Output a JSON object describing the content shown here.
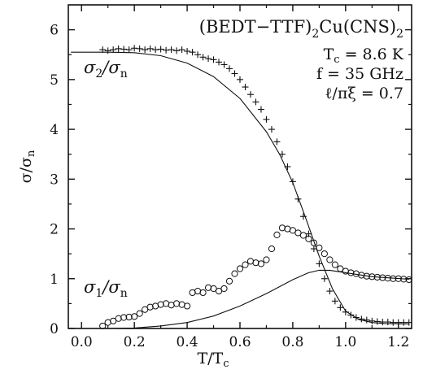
{
  "chart_data": {
    "type": "scatter",
    "title": "",
    "xlabel": "T/T",
    "xlabel_sub": "c",
    "ylabel": "σ/σ",
    "ylabel_sub": "n",
    "xlim": [
      -0.05,
      1.25
    ],
    "ylim": [
      0,
      6.5
    ],
    "x_ticks": [
      0.0,
      0.2,
      0.4,
      0.6,
      0.8,
      1.0,
      1.2
    ],
    "x_tick_labels": [
      "0.0",
      "0.2",
      "0.4",
      "0.6",
      "0.8",
      "1.0",
      "1.2"
    ],
    "y_ticks": [
      0,
      1,
      2,
      3,
      4,
      5,
      6
    ],
    "y_tick_labels": [
      "0",
      "1",
      "2",
      "3",
      "4",
      "5",
      "6"
    ],
    "grid": false,
    "legend": "none",
    "annotations": {
      "material": {
        "a": "(BEDT−TTF)",
        "b": "2",
        "c": "Cu(CNS)",
        "d": "2"
      },
      "tc": {
        "main": "T",
        "sub": "c",
        "rest": " = 8.6 K"
      },
      "freq": "f = 35 GHz",
      "ratio": "ℓ/πξ = 0.7",
      "sigma2": {
        "main": "σ",
        "sub1": "2",
        "mid": "/σ",
        "sub2": "n"
      },
      "sigma1": {
        "main": "σ",
        "sub1": "1",
        "mid": "/σ",
        "sub2": "n"
      }
    },
    "series": [
      {
        "marker": "plus",
        "points": [
          [
            0.08,
            5.6
          ],
          [
            0.1,
            5.58
          ],
          [
            0.12,
            5.6
          ],
          [
            0.14,
            5.62
          ],
          [
            0.16,
            5.61
          ],
          [
            0.18,
            5.6
          ],
          [
            0.2,
            5.63
          ],
          [
            0.22,
            5.62
          ],
          [
            0.24,
            5.6
          ],
          [
            0.26,
            5.62
          ],
          [
            0.28,
            5.6
          ],
          [
            0.3,
            5.61
          ],
          [
            0.32,
            5.59
          ],
          [
            0.34,
            5.6
          ],
          [
            0.36,
            5.58
          ],
          [
            0.38,
            5.6
          ],
          [
            0.4,
            5.57
          ],
          [
            0.42,
            5.55
          ],
          [
            0.44,
            5.5
          ],
          [
            0.46,
            5.45
          ],
          [
            0.48,
            5.42
          ],
          [
            0.5,
            5.4
          ],
          [
            0.52,
            5.35
          ],
          [
            0.54,
            5.3
          ],
          [
            0.56,
            5.22
          ],
          [
            0.58,
            5.12
          ],
          [
            0.6,
            5.0
          ],
          [
            0.62,
            4.85
          ],
          [
            0.64,
            4.7
          ],
          [
            0.66,
            4.55
          ],
          [
            0.68,
            4.4
          ],
          [
            0.7,
            4.2
          ],
          [
            0.72,
            4.0
          ],
          [
            0.74,
            3.75
          ],
          [
            0.76,
            3.5
          ],
          [
            0.78,
            3.25
          ],
          [
            0.8,
            2.95
          ],
          [
            0.82,
            2.6
          ],
          [
            0.84,
            2.25
          ],
          [
            0.86,
            1.9
          ],
          [
            0.88,
            1.6
          ],
          [
            0.9,
            1.3
          ],
          [
            0.92,
            1.0
          ],
          [
            0.94,
            0.75
          ],
          [
            0.96,
            0.55
          ],
          [
            0.98,
            0.42
          ],
          [
            1.0,
            0.33
          ],
          [
            1.02,
            0.27
          ],
          [
            1.04,
            0.22
          ],
          [
            1.06,
            0.19
          ],
          [
            1.08,
            0.17
          ],
          [
            1.1,
            0.15
          ],
          [
            1.12,
            0.14
          ],
          [
            1.14,
            0.13
          ],
          [
            1.16,
            0.13
          ],
          [
            1.18,
            0.12
          ],
          [
            1.2,
            0.12
          ],
          [
            1.22,
            0.12
          ],
          [
            1.24,
            0.12
          ]
        ]
      },
      {
        "marker": "circle",
        "points": [
          [
            0.08,
            0.05
          ],
          [
            0.1,
            0.12
          ],
          [
            0.12,
            0.15
          ],
          [
            0.14,
            0.2
          ],
          [
            0.16,
            0.22
          ],
          [
            0.18,
            0.23
          ],
          [
            0.2,
            0.24
          ],
          [
            0.22,
            0.3
          ],
          [
            0.24,
            0.38
          ],
          [
            0.26,
            0.43
          ],
          [
            0.28,
            0.45
          ],
          [
            0.3,
            0.48
          ],
          [
            0.32,
            0.5
          ],
          [
            0.34,
            0.47
          ],
          [
            0.36,
            0.5
          ],
          [
            0.38,
            0.48
          ],
          [
            0.4,
            0.45
          ],
          [
            0.42,
            0.72
          ],
          [
            0.44,
            0.75
          ],
          [
            0.46,
            0.72
          ],
          [
            0.48,
            0.82
          ],
          [
            0.5,
            0.8
          ],
          [
            0.52,
            0.75
          ],
          [
            0.54,
            0.8
          ],
          [
            0.56,
            0.95
          ],
          [
            0.58,
            1.1
          ],
          [
            0.6,
            1.2
          ],
          [
            0.62,
            1.28
          ],
          [
            0.64,
            1.35
          ],
          [
            0.66,
            1.32
          ],
          [
            0.68,
            1.3
          ],
          [
            0.7,
            1.38
          ],
          [
            0.72,
            1.6
          ],
          [
            0.74,
            1.88
          ],
          [
            0.76,
            2.02
          ],
          [
            0.78,
            2.0
          ],
          [
            0.8,
            1.97
          ],
          [
            0.82,
            1.92
          ],
          [
            0.84,
            1.87
          ],
          [
            0.86,
            1.8
          ],
          [
            0.88,
            1.72
          ],
          [
            0.9,
            1.62
          ],
          [
            0.92,
            1.5
          ],
          [
            0.94,
            1.38
          ],
          [
            0.96,
            1.28
          ],
          [
            0.98,
            1.2
          ],
          [
            1.0,
            1.15
          ],
          [
            1.02,
            1.12
          ],
          [
            1.04,
            1.1
          ],
          [
            1.06,
            1.07
          ],
          [
            1.08,
            1.05
          ],
          [
            1.1,
            1.04
          ],
          [
            1.12,
            1.03
          ],
          [
            1.14,
            1.02
          ],
          [
            1.16,
            1.01
          ],
          [
            1.18,
            1.0
          ],
          [
            1.2,
            1.0
          ],
          [
            1.22,
            0.99
          ],
          [
            1.24,
            0.98
          ]
        ]
      },
      {
        "marker": "line",
        "points": [
          [
            -0.04,
            5.55
          ],
          [
            0.1,
            5.55
          ],
          [
            0.2,
            5.54
          ],
          [
            0.3,
            5.48
          ],
          [
            0.4,
            5.33
          ],
          [
            0.5,
            5.06
          ],
          [
            0.6,
            4.62
          ],
          [
            0.7,
            3.95
          ],
          [
            0.75,
            3.5
          ],
          [
            0.8,
            2.93
          ],
          [
            0.85,
            2.2
          ],
          [
            0.9,
            1.45
          ],
          [
            0.95,
            0.8
          ],
          [
            1.0,
            0.35
          ],
          [
            1.05,
            0.18
          ],
          [
            1.1,
            0.12
          ],
          [
            1.15,
            0.1
          ],
          [
            1.24,
            0.09
          ]
        ]
      },
      {
        "marker": "line",
        "points": [
          [
            0.1,
            0.0
          ],
          [
            0.2,
            0.01
          ],
          [
            0.3,
            0.05
          ],
          [
            0.4,
            0.12
          ],
          [
            0.5,
            0.25
          ],
          [
            0.6,
            0.45
          ],
          [
            0.7,
            0.7
          ],
          [
            0.8,
            0.98
          ],
          [
            0.86,
            1.12
          ],
          [
            0.9,
            1.17
          ],
          [
            0.94,
            1.17
          ],
          [
            1.0,
            1.12
          ],
          [
            1.1,
            1.04
          ],
          [
            1.24,
            0.99
          ]
        ]
      }
    ]
  }
}
